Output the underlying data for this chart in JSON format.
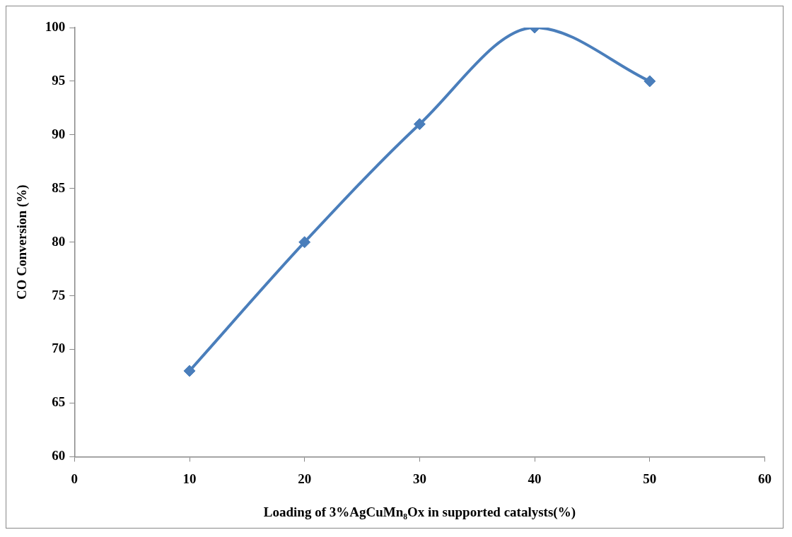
{
  "chart_data": {
    "type": "line",
    "xlabel": "Loading of 3%AgCuMn₈Ox in supported catalysts(%)",
    "ylabel": "CO Conversion (%)",
    "x": [
      10,
      20,
      30,
      40,
      50
    ],
    "series": [
      {
        "color": "#4a7ebb",
        "values": [
          68,
          80,
          91,
          100,
          95
        ]
      }
    ],
    "xlim": [
      0,
      60
    ],
    "xticks": [
      0,
      10,
      20,
      30,
      40,
      50,
      60
    ],
    "ylim": [
      60,
      100
    ],
    "yticks": [
      60,
      65,
      70,
      75,
      80,
      85,
      90,
      95,
      100
    ],
    "grid": false,
    "legend": false,
    "marker": "diamond",
    "line_style": "solid"
  }
}
